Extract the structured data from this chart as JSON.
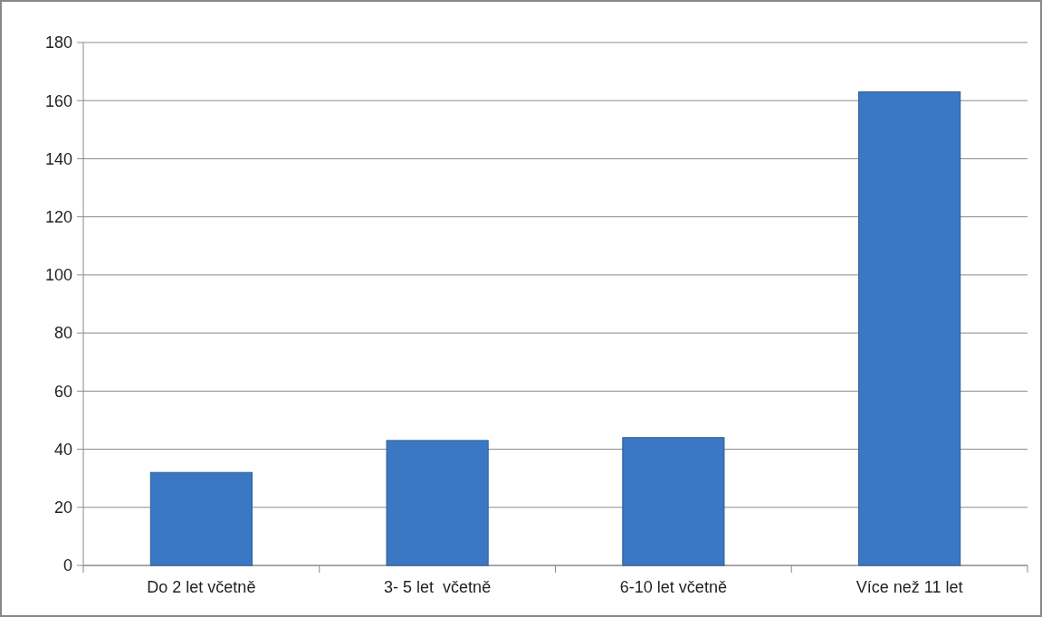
{
  "chart_data": {
    "type": "bar",
    "categories": [
      "Do 2 let včetně",
      "3- 5 let  včetně",
      "6-10 let včetně",
      "Více než 11 let"
    ],
    "values": [
      32,
      43,
      44,
      163
    ],
    "color": "#3b78c4",
    "ylim": [
      0,
      180
    ],
    "yticks": [
      0,
      20,
      40,
      60,
      80,
      100,
      120,
      140,
      160,
      180
    ],
    "grid": "y"
  }
}
